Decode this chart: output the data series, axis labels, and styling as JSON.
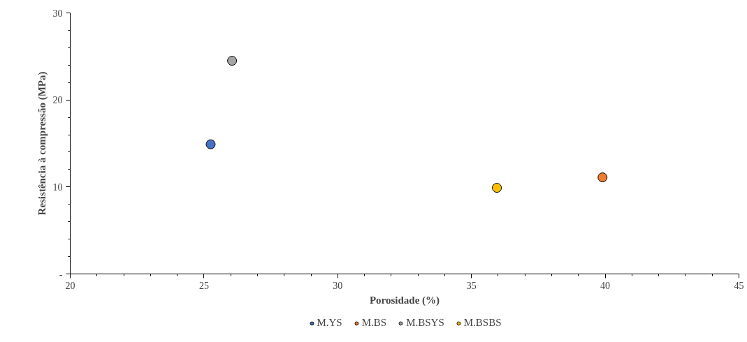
{
  "chart_data": {
    "type": "scatter",
    "xlabel": "Porosidade (%)",
    "ylabel": "Resistência à compressão (MPa)",
    "series": [
      {
        "name": "M.YS",
        "color": "#4472c4",
        "x": [
          25.25
        ],
        "values": [
          14.9
        ]
      },
      {
        "name": "M.BS",
        "color": "#ed7d31",
        "x": [
          39.9
        ],
        "values": [
          11.1
        ]
      },
      {
        "name": "M.BSYS",
        "color": "#a5a5a5",
        "x": [
          26.05
        ],
        "values": [
          24.5
        ]
      },
      {
        "name": "M.BSBS",
        "color": "#ffc000",
        "x": [
          35.95
        ],
        "values": [
          9.9
        ]
      }
    ],
    "xlim": [
      20,
      45
    ],
    "xticks": [
      20,
      25,
      30,
      35,
      40,
      45
    ],
    "ylim": [
      0,
      30
    ],
    "yticks": [
      {
        "value": 0,
        "label": "-"
      },
      10,
      20,
      30
    ],
    "grid": false,
    "legend": "bottom",
    "marker": "circle"
  }
}
